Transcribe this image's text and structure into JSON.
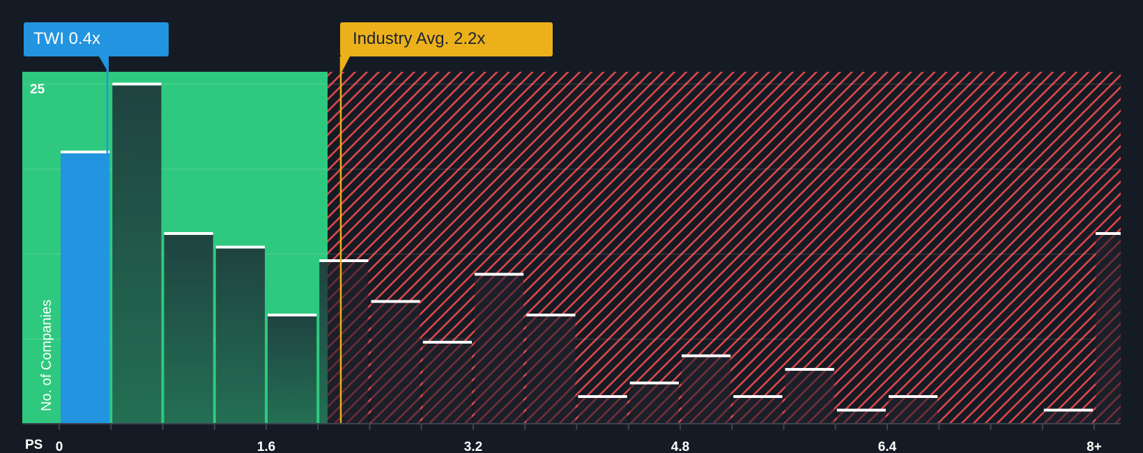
{
  "callouts": {
    "company": "TWI 0.4x",
    "industry": "Industry Avg. 2.2x"
  },
  "axis": {
    "x_title": "PS",
    "y_title": "No. of Companies",
    "y_tick": "25"
  },
  "colors": {
    "background": "#151b24",
    "good_zone": "#2ec97f",
    "bad_zone_stripe": "#e0474c",
    "company": "#2394df",
    "industry": "#ecb11a",
    "bar_dark": "#1f4a3f"
  },
  "chart_data": {
    "type": "bar",
    "title": "",
    "xlabel": "PS",
    "ylabel": "No. of Companies",
    "x_tick_labels": [
      "0",
      "1.6",
      "3.2",
      "4.8",
      "6.4",
      "8+"
    ],
    "x_tick_values": [
      0,
      1.6,
      3.2,
      4.8,
      6.4,
      8
    ],
    "bin_width": 0.4,
    "bin_starts": [
      0,
      0.4,
      0.8,
      1.2,
      1.6,
      2.0,
      2.4,
      2.8,
      3.2,
      3.6,
      4.0,
      4.4,
      4.8,
      5.2,
      5.6,
      6.0,
      6.4,
      6.8,
      7.2,
      7.6,
      8.0
    ],
    "values": [
      20,
      25,
      14,
      13,
      8,
      12,
      9,
      6,
      11,
      8,
      2,
      3,
      5,
      2,
      4,
      1,
      2,
      0,
      0,
      1,
      14
    ],
    "highlight_bin": 0,
    "company_value": 0.4,
    "company_label": "TWI 0.4x",
    "industry_avg": 2.2,
    "industry_label": "Industry Avg. 2.2x",
    "good_zone_max": 2.1,
    "ylim": [
      0,
      25
    ],
    "y_ticks_labeled": [
      25
    ],
    "grid": true
  }
}
